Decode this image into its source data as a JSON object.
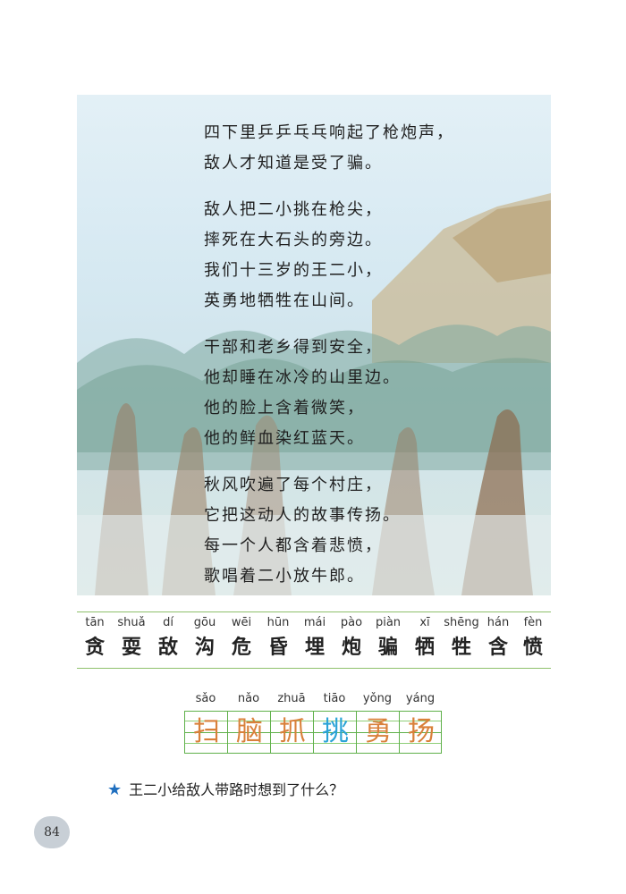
{
  "poem": {
    "stanzas": [
      [
        "四下里乒乒乓乓响起了枪炮声，",
        "敌人才知道是受了骗。"
      ],
      [
        "敌人把二小挑在枪尖，",
        "摔死在大石头的旁边。",
        "我们十三岁的王二小，",
        "英勇地牺牲在山间。"
      ],
      [
        "干部和老乡得到安全，",
        "他却睡在冰冷的山里边。",
        "他的脸上含着微笑，",
        "他的鲜血染红蓝天。"
      ],
      [
        "秋风吹遍了每个村庄，",
        "它把这动人的故事传扬。",
        "每一个人都含着悲愤，",
        "歌唱着二小放牛郎。"
      ]
    ]
  },
  "vocab": [
    {
      "pinyin": "tān",
      "hanzi": "贪"
    },
    {
      "pinyin": "shuǎ",
      "hanzi": "耍"
    },
    {
      "pinyin": "dí",
      "hanzi": "敌"
    },
    {
      "pinyin": "gōu",
      "hanzi": "沟"
    },
    {
      "pinyin": "wēi",
      "hanzi": "危"
    },
    {
      "pinyin": "hūn",
      "hanzi": "昏"
    },
    {
      "pinyin": "mái",
      "hanzi": "埋"
    },
    {
      "pinyin": "pào",
      "hanzi": "炮"
    },
    {
      "pinyin": "piàn",
      "hanzi": "骗"
    },
    {
      "pinyin": "xī",
      "hanzi": "牺"
    },
    {
      "pinyin": "shēng",
      "hanzi": "牲"
    },
    {
      "pinyin": "hán",
      "hanzi": "含"
    },
    {
      "pinyin": "fèn",
      "hanzi": "愤"
    }
  ],
  "writing": [
    {
      "pinyin": "sǎo",
      "hanzi": "扫",
      "highlight": false
    },
    {
      "pinyin": "nǎo",
      "hanzi": "脑",
      "highlight": false
    },
    {
      "pinyin": "zhuā",
      "hanzi": "抓",
      "highlight": false
    },
    {
      "pinyin": "tiāo",
      "hanzi": "挑",
      "highlight": true
    },
    {
      "pinyin": "yǒng",
      "hanzi": "勇",
      "highlight": false
    },
    {
      "pinyin": "yáng",
      "hanzi": "扬",
      "highlight": false
    }
  ],
  "question": {
    "star": "★",
    "text": "王二小给敌人带路时想到了什么？"
  },
  "page_number": "84",
  "colors": {
    "accent_orange": "#d9803a",
    "accent_blue": "#2aa3d6",
    "grid_green": "#5fb04a"
  }
}
